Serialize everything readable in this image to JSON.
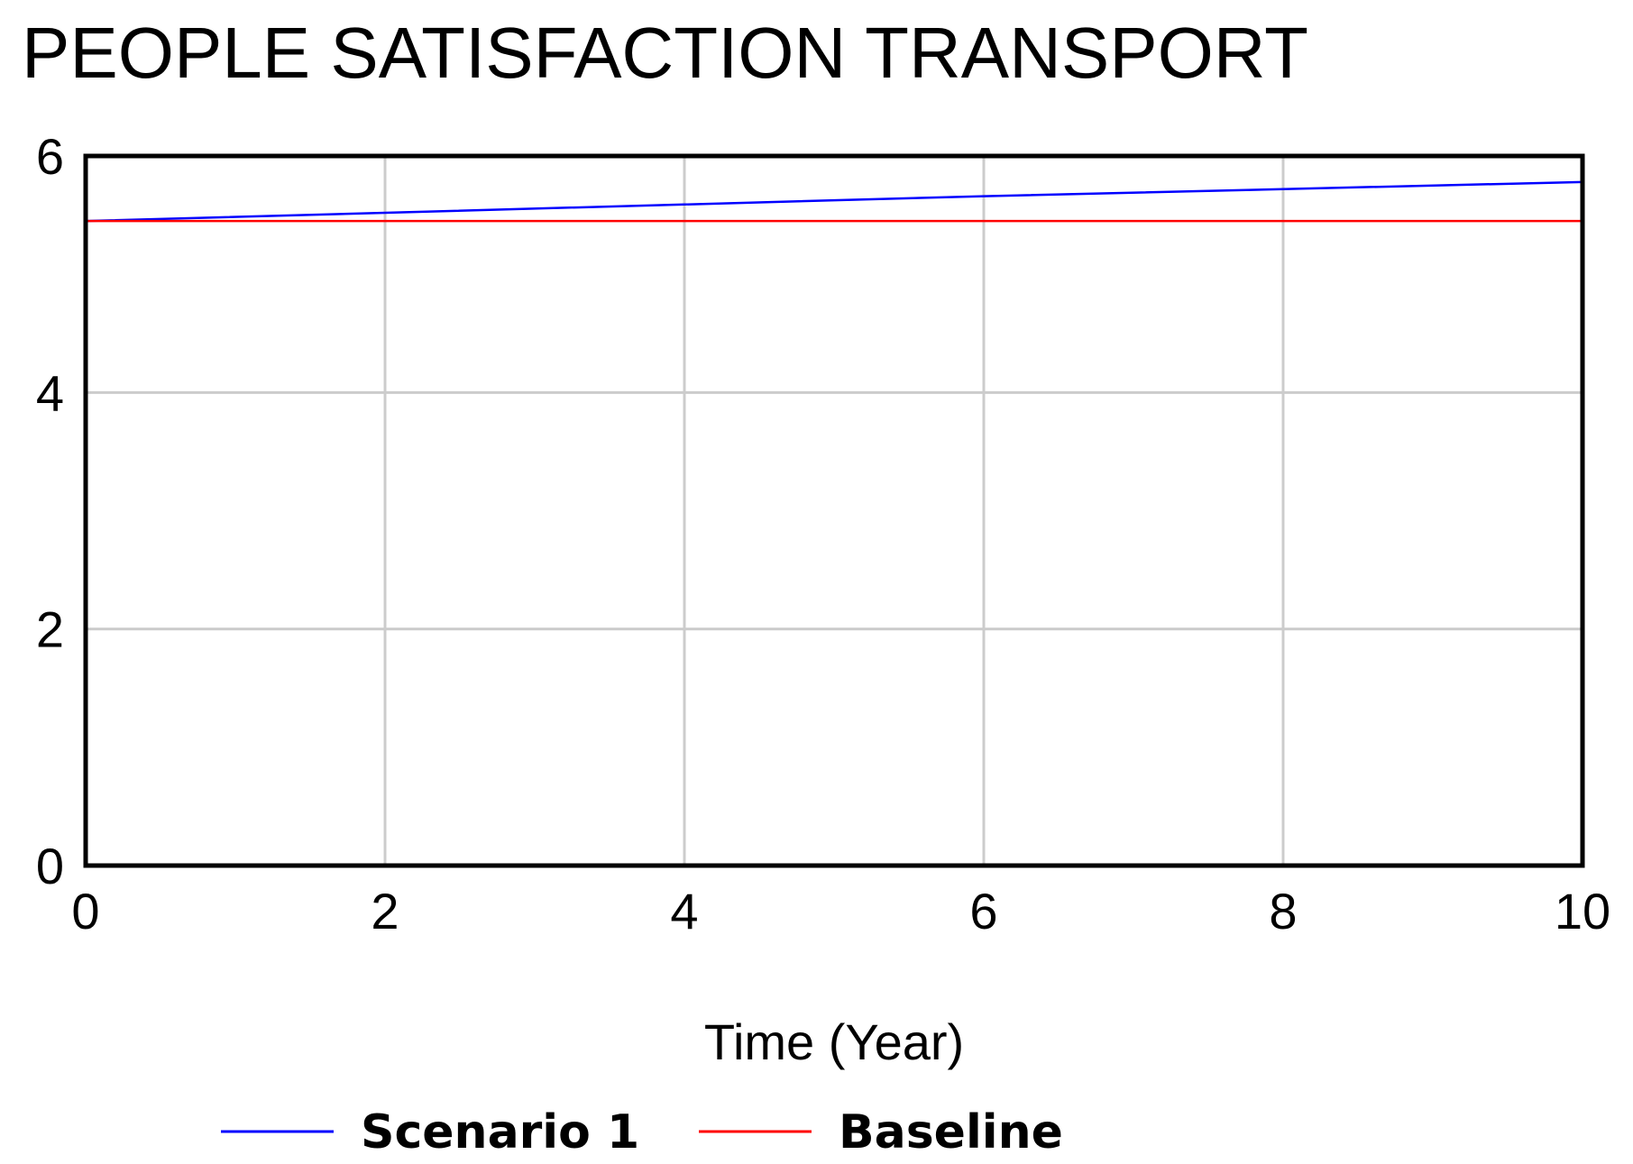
{
  "chart_data": {
    "type": "line",
    "title": "PEOPLE SATISFACTION TRANSPORT",
    "xlabel": "Time (Year)",
    "ylabel": "",
    "xlim": [
      0,
      10
    ],
    "ylim": [
      0,
      6
    ],
    "x_ticks": [
      0,
      2,
      4,
      6,
      8,
      10
    ],
    "y_ticks": [
      0,
      2,
      4,
      6
    ],
    "grid": true,
    "legend_position": "bottom",
    "series": [
      {
        "name": "Scenario 1",
        "color": "#0000ff",
        "x": [
          0,
          2,
          4,
          6,
          8,
          10
        ],
        "values": [
          5.45,
          5.52,
          5.59,
          5.66,
          5.72,
          5.78
        ]
      },
      {
        "name": "Baseline",
        "color": "#ff0000",
        "x": [
          0,
          2,
          4,
          6,
          8,
          10
        ],
        "values": [
          5.45,
          5.45,
          5.45,
          5.45,
          5.45,
          5.45
        ]
      }
    ]
  }
}
